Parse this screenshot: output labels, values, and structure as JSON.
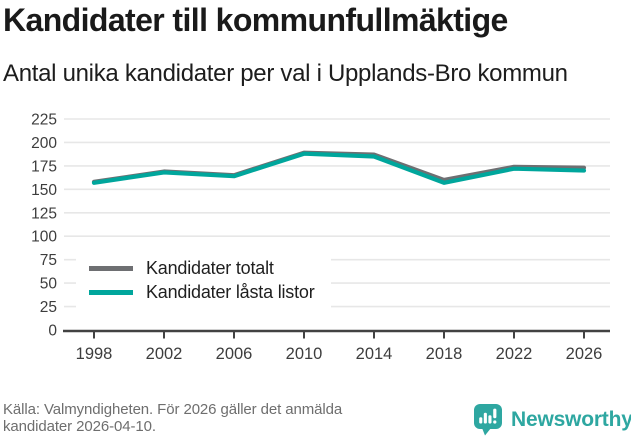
{
  "header": {
    "title": "Kandidater till kommunfullmäktige",
    "subtitle": "Antal unika kandidater per val i Upplands-Bro kommun"
  },
  "chart_data": {
    "type": "line",
    "x": [
      1998,
      2002,
      2006,
      2010,
      2014,
      2018,
      2022,
      2026
    ],
    "series": [
      {
        "name": "Kandidater totalt",
        "color": "#6e6f72",
        "values": [
          158,
          169,
          165,
          189,
          187,
          160,
          174,
          173
        ]
      },
      {
        "name": "Kandidater låsta listor",
        "color": "#00a69c",
        "values": [
          157,
          168,
          164,
          188,
          185,
          157,
          172,
          170
        ]
      }
    ],
    "title": "Kandidater till kommunfullmäktige",
    "xlabel": "",
    "ylabel": "",
    "ylim": [
      0,
      225
    ],
    "ytick_step": 25,
    "grid": true,
    "legend_position": "inside bottom-left"
  },
  "axis_style": {
    "grid_color": "#e7e7e7",
    "axis_color": "#424242",
    "tick_label_color": "#3d3d3d"
  },
  "footer": {
    "source_line1": "Källa: Valmyndigheten. För 2026 gäller det anmälda",
    "source_line2": "kandidater 2026-04-10.",
    "brand": "Newsworthy",
    "brand_color": "#2ea7a1",
    "brand_icon": "speech-bubble-bar-chart-icon"
  }
}
